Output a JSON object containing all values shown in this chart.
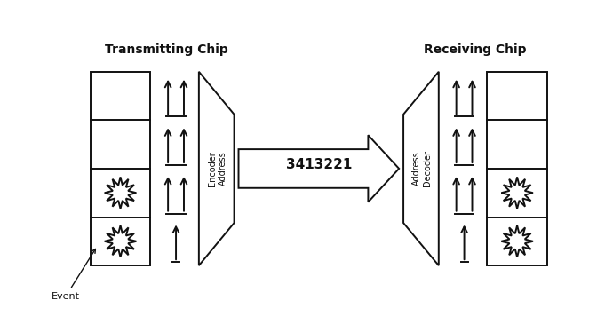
{
  "bg_color": "#ffffff",
  "title_transmit": "Transmitting Chip",
  "title_receive": "Receiving Chip",
  "address_label": "3413221",
  "encoder_label1": "Address",
  "encoder_label2": "Encoder",
  "decoder_label1": "Address",
  "decoder_label2": "Decoder",
  "event_label": "Event",
  "arrow_color": "#111111",
  "box_color": "#111111",
  "text_color": "#111111",
  "lw": 1.4
}
